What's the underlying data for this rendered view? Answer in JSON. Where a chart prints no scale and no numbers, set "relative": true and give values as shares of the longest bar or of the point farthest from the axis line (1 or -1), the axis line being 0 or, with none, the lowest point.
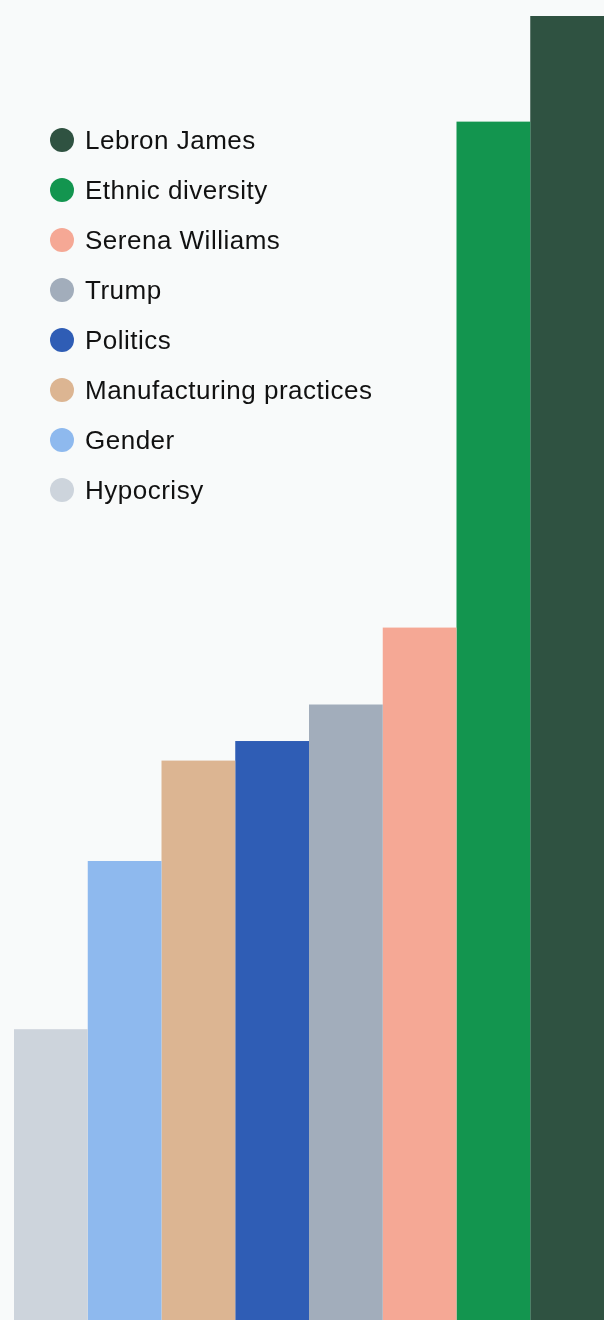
{
  "chart_data": {
    "type": "bar",
    "relative": true,
    "stacked": true,
    "legend": "top left",
    "categories": [
      null,
      null,
      null,
      null,
      null,
      null,
      null,
      null
    ],
    "series": [
      {
        "name": "Lebron James",
        "color": "#2f5241",
        "values": [
          null,
          null,
          null,
          null,
          null,
          null,
          null,
          1
        ]
      },
      {
        "name": "Ethnic diversity",
        "color": "#13954f",
        "values": [
          null,
          null,
          null,
          null,
          null,
          null,
          0.919,
          null
        ]
      },
      {
        "name": "Serena Williams",
        "color": "#f5a895",
        "values": [
          null,
          null,
          null,
          null,
          null,
          0.531,
          null,
          null
        ]
      },
      {
        "name": "Trump",
        "color": "#a2adbb",
        "values": [
          null,
          null,
          null,
          null,
          0.472,
          null,
          null,
          null
        ]
      },
      {
        "name": "Politics",
        "color": "#2f5db5",
        "values": [
          null,
          null,
          null,
          0.444,
          null,
          null,
          null,
          null
        ]
      },
      {
        "name": "Manufacturing practices",
        "color": "#dcb592",
        "values": [
          null,
          null,
          0.429,
          null,
          null,
          null,
          null,
          null
        ]
      },
      {
        "name": "Gender",
        "color": "#8eb9ee",
        "values": [
          null,
          0.352,
          null,
          null,
          null,
          null,
          null,
          null
        ]
      },
      {
        "name": "Hypocrisy",
        "color": "#cdd4dc",
        "values": [
          0.223,
          null,
          null,
          null,
          null,
          null,
          null,
          null
        ]
      }
    ]
  }
}
